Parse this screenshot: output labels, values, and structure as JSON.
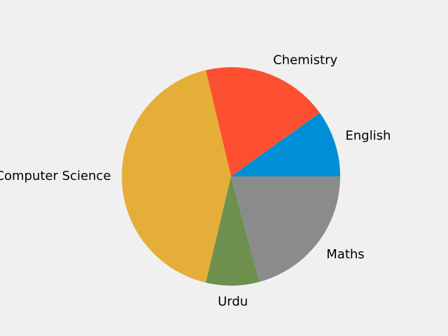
{
  "chart_data": {
    "type": "pie",
    "title": "",
    "slices": [
      {
        "label": "English",
        "value": 10,
        "color": "#008fd5"
      },
      {
        "label": "Chemistry",
        "value": 19,
        "color": "#fc4f30"
      },
      {
        "label": "Computer Science",
        "value": 43,
        "color": "#e5ae38"
      },
      {
        "label": "Urdu",
        "value": 8,
        "color": "#6d904f"
      },
      {
        "label": "Maths",
        "value": 21,
        "color": "#8b8b8b"
      }
    ],
    "start_angle_degrees": 0,
    "direction": "counterclockwise",
    "legend": "none"
  }
}
